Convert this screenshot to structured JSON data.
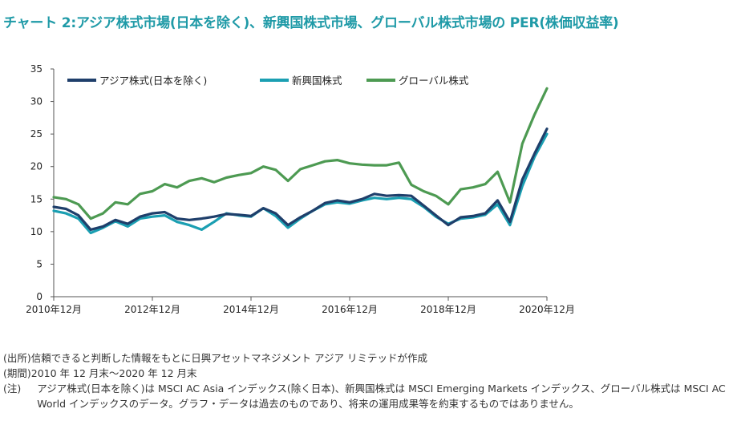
{
  "title": "チャート 2:アジア株式市場(日本を除く)、新興国株式市場、グローバル株式市場の PER(株価収益率)",
  "chart_data": {
    "type": "line",
    "ylim": [
      0,
      35
    ],
    "yticks": [
      0,
      5,
      10,
      15,
      20,
      25,
      30,
      35
    ],
    "x_tick_labels": [
      "2010年12月",
      "2012年12月",
      "2014年12月",
      "2016年12月",
      "2018年12月",
      "2020年12月"
    ],
    "x_range": [
      "2010-12",
      "2020-12"
    ],
    "legend_position": "top-left",
    "grid": false,
    "x": [
      "2010-12",
      "2011-03",
      "2011-06",
      "2011-09",
      "2011-12",
      "2012-03",
      "2012-06",
      "2012-09",
      "2012-12",
      "2013-03",
      "2013-06",
      "2013-09",
      "2013-12",
      "2014-03",
      "2014-06",
      "2014-09",
      "2014-12",
      "2015-03",
      "2015-06",
      "2015-09",
      "2015-12",
      "2016-03",
      "2016-06",
      "2016-09",
      "2016-12",
      "2017-03",
      "2017-06",
      "2017-09",
      "2017-12",
      "2018-03",
      "2018-06",
      "2018-09",
      "2018-12",
      "2019-03",
      "2019-06",
      "2019-09",
      "2019-12",
      "2020-03",
      "2020-06",
      "2020-09",
      "2020-12"
    ],
    "series": [
      {
        "name": "アジア株式(日本を除く)",
        "color": "#1f3f6b",
        "values": [
          13.8,
          13.5,
          12.5,
          10.3,
          10.8,
          11.8,
          11.2,
          12.3,
          12.8,
          13.0,
          12.0,
          11.8,
          12.0,
          12.3,
          12.7,
          12.6,
          12.4,
          13.6,
          12.8,
          11.0,
          12.2,
          13.2,
          14.4,
          14.8,
          14.5,
          15.0,
          15.8,
          15.5,
          15.6,
          15.5,
          14.0,
          12.5,
          11.0,
          12.2,
          12.4,
          12.8,
          14.8,
          11.5,
          18.0,
          22.0,
          25.8
        ]
      },
      {
        "name": "新興国株式",
        "color": "#1b9fb2",
        "values": [
          13.2,
          12.8,
          12.0,
          9.8,
          10.6,
          11.6,
          10.8,
          12.0,
          12.3,
          12.5,
          11.5,
          11.0,
          10.3,
          11.5,
          12.8,
          12.5,
          12.3,
          13.6,
          12.4,
          10.6,
          12.0,
          13.2,
          14.2,
          14.5,
          14.3,
          14.8,
          15.2,
          15.0,
          15.2,
          15.0,
          13.8,
          12.3,
          11.2,
          12.0,
          12.2,
          12.6,
          14.2,
          11.0,
          17.0,
          21.5,
          25.0
        ]
      },
      {
        "name": "グローバル株式",
        "color": "#4d9a52",
        "values": [
          15.3,
          15.0,
          14.2,
          12.0,
          12.8,
          14.5,
          14.2,
          15.8,
          16.2,
          17.3,
          16.8,
          17.8,
          18.2,
          17.6,
          18.3,
          18.7,
          19.0,
          20.0,
          19.5,
          17.8,
          19.6,
          20.2,
          20.8,
          21.0,
          20.5,
          20.3,
          20.2,
          20.2,
          20.6,
          17.2,
          16.2,
          15.5,
          14.2,
          16.5,
          16.8,
          17.3,
          19.2,
          14.5,
          23.5,
          28.0,
          32.0
        ]
      }
    ]
  },
  "notes": [
    {
      "label": "(出所)",
      "text": "信頼できると判断した情報をもとに日興アセットマネジメント アジア リミテッドが作成"
    },
    {
      "label": "(期間)",
      "text": "2010 年 12 月末〜2020 年 12 月末"
    },
    {
      "label": "(注)",
      "text": "アジア株式(日本を除く)は MSCI AC Asia インデックス(除く日本)、新興国株式は MSCI Emerging Markets インデックス、グローバル株式は MSCI AC World インデックスのデータ。グラフ・データは過去のものであり、将来の運用成果等を約束するものではありません。"
    }
  ]
}
